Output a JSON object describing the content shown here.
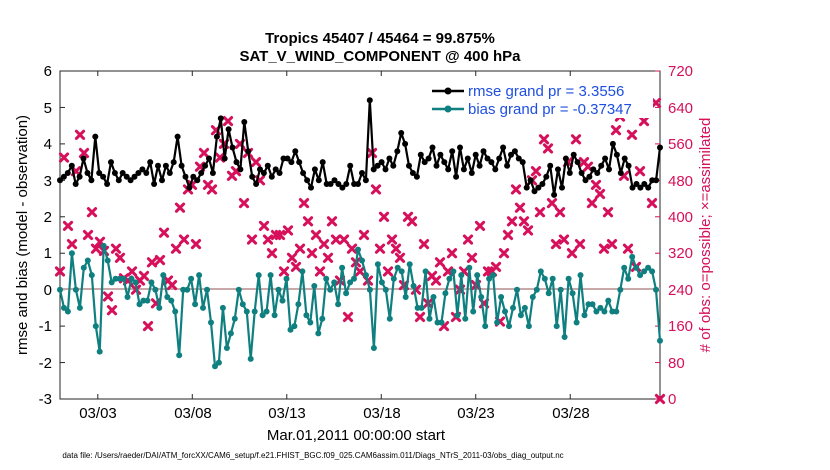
{
  "chart_data": {
    "type": "line",
    "title": "Tropics 45407 / 45464 = 99.875%",
    "subtitle": "SAT_V_WIND_COMPONENT @ 400 hPa",
    "xlabel": "Mar.01,2011 00:00:00 start",
    "ylabel": "rmse and bias (model - observation)",
    "ylabel_right": "# of obs: o=possible; ×=assimilated",
    "footnote": "data file: /Users/raeder/DAI/ATM_forcXX/CAM6_setup/f.e21.FHIST_BGC.f09_025.CAM6assim.011/Diags_NTrS_2011-03/obs_diag_output.nc",
    "xlim": [
      1,
      32.75
    ],
    "ylim": [
      -3,
      6
    ],
    "ylim_right": [
      0,
      720
    ],
    "x_ticks": [
      3,
      8,
      13,
      18,
      23,
      28
    ],
    "x_tick_labels": [
      "03/03",
      "03/08",
      "03/13",
      "03/18",
      "03/23",
      "03/28"
    ],
    "y_ticks": [
      "-3",
      "-2",
      "-1",
      "0",
      "1",
      "2",
      "3",
      "4",
      "5",
      "6"
    ],
    "y_ticks_right": [
      "0",
      "80",
      "160",
      "240",
      "320",
      "400",
      "480",
      "560",
      "640",
      "720"
    ],
    "legend": {
      "rmse_label": "rmse grand pr = 3.3556",
      "bias_label": "bias grand pr = -0.37347",
      "location": "top-right"
    },
    "colors": {
      "rmse": "#000000",
      "bias": "#0f7f7f",
      "obs": "#d6105a",
      "zero_line": "#c8a8a8",
      "legend_text": "#1f4fe0"
    },
    "series": [
      {
        "name": "rmse",
        "values": [
          3.0,
          3.1,
          3.2,
          3.4,
          2.9,
          3.1,
          3.6,
          3.2,
          3.0,
          4.2,
          3.2,
          3.1,
          2.9,
          3.5,
          3.2,
          3.0,
          3.2,
          3.1,
          3.0,
          3.1,
          3.2,
          3.3,
          3.2,
          3.5,
          2.9,
          3.4,
          3.0,
          3.4,
          3.2,
          3.5,
          4.2,
          3.4,
          3.1,
          2.8,
          3.1,
          3.0,
          3.2,
          3.4,
          3.6,
          3.2,
          4.2,
          4.7,
          3.6,
          4.4,
          3.9,
          3.5,
          3.3,
          4.6,
          3.8,
          3.1,
          2.9,
          3.3,
          3.2,
          3.4,
          3.1,
          3.3,
          3.2,
          3.6,
          3.6,
          3.5,
          3.8,
          3.5,
          3.2,
          3.0,
          2.8,
          3.3,
          3.0,
          3.5,
          2.9,
          2.9,
          3.0,
          2.9,
          2.8,
          2.9,
          3.4,
          2.9,
          2.9,
          3.2,
          3.0,
          5.2,
          3.3,
          3.4,
          3.5,
          3.3,
          3.6,
          3.4,
          3.8,
          4.3,
          4.0,
          3.4,
          3.2,
          3.1,
          3.7,
          3.5,
          3.6,
          3.9,
          3.4,
          3.7,
          3.5,
          3.3,
          3.8,
          3.1,
          3.9,
          3.3,
          3.6,
          3.2,
          3.7,
          3.4,
          3.8,
          3.6,
          3.5,
          3.3,
          3.6,
          3.9,
          3.4,
          3.7,
          3.8,
          3.6,
          3.5,
          2.8,
          3.0,
          2.7,
          2.8,
          2.9,
          3.1,
          3.4,
          2.6,
          3.3,
          2.8,
          3.6,
          3.2,
          3.7,
          3.5,
          3.2,
          3.0,
          3.1,
          3.3,
          3.2,
          3.4,
          3.6,
          3.3,
          4.0,
          3.7,
          3.2,
          3.6,
          3.4,
          2.8,
          2.9,
          2.8,
          2.9,
          2.8,
          3.0,
          3.0,
          3.9
        ],
        "note": "black line with dot markers, ~4 samples per day"
      },
      {
        "name": "bias",
        "values": [
          0.0,
          -0.5,
          -0.6,
          1.0,
          0.0,
          -0.5,
          0.6,
          0.8,
          0.4,
          -1.0,
          -1.7,
          1.2,
          0.8,
          0.2,
          0.3,
          0.3,
          0.3,
          -0.2,
          0.3,
          0.2,
          -0.4,
          -0.3,
          -0.3,
          0.2,
          0.0,
          -0.5,
          0.4,
          -0.2,
          -0.3,
          -0.6,
          -1.8,
          0.0,
          0.0,
          0.3,
          -0.4,
          0.4,
          -0.5,
          0.0,
          -0.9,
          -2.1,
          -2.0,
          -0.5,
          -1.6,
          -1.2,
          -0.8,
          0.0,
          -0.4,
          -0.6,
          -1.9,
          -0.6,
          0.4,
          -0.7,
          -0.6,
          0.4,
          -0.7,
          0.0,
          -0.3,
          0.3,
          -1.1,
          -1.0,
          -0.4,
          0.5,
          -0.7,
          -0.9,
          0.1,
          -1.2,
          -0.8,
          0.3,
          0.0,
          0.2,
          -0.4,
          0.6,
          -0.1,
          0.2,
          0.3,
          1.1,
          0.8,
          0.4,
          0.0,
          -1.6,
          0.7,
          0.2,
          0.0,
          -0.8,
          0.3,
          0.6,
          0.5,
          -0.2,
          0.7,
          0.1,
          -0.5,
          -0.5,
          0.5,
          -0.8,
          -0.2,
          -0.9,
          -0.9,
          -0.1,
          0.3,
          0.5,
          -0.7,
          0.4,
          -0.8,
          0.6,
          -0.6,
          0.4,
          -0.2,
          -1.0,
          0.3,
          0.4,
          -0.9,
          -0.2,
          -0.6,
          -1.0,
          -0.5,
          0.0,
          -0.7,
          -0.5,
          -1.0,
          -0.2,
          0.0,
          0.5,
          0.3,
          -0.1,
          0.3,
          -1.0,
          0.0,
          -1.3,
          0.3,
          -0.1,
          -0.9,
          0.4,
          -0.7,
          -0.4,
          -0.4,
          -0.6,
          -0.5,
          -0.6,
          -0.3,
          -0.6,
          -0.6,
          0.0,
          0.6,
          0.3,
          0.9,
          0.6,
          0.4,
          0.5,
          0.6,
          0.5,
          0.0,
          -1.4
        ],
        "note": "teal line with dot markers"
      },
      {
        "name": "obs_assimilated",
        "axis": "right",
        "values": [
          280,
          530,
          380,
          340,
          500,
          580,
          540,
          360,
          410,
          330,
          345,
          325,
          225,
          195,
          330,
          310,
          265,
          260,
          280,
          240,
          260,
          270,
          160,
          300,
          210,
          305,
          365,
          260,
          250,
          330,
          420,
          350,
          460,
          470,
          340,
          510,
          540,
          470,
          460,
          590,
          530,
          560,
          610,
          490,
          500,
          560,
          430,
          540,
          350,
          520,
          480,
          380,
          350,
          320,
          360,
          360,
          280,
          370,
          310,
          290,
          330,
          430,
          390,
          320,
          360,
          280,
          340,
          310,
          390,
          350,
          260,
          350,
          180,
          330,
          300,
          280,
          360,
          260,
          540,
          460,
          330,
          400,
          280,
          350,
          330,
          310,
          250,
          400,
          390,
          240,
          180,
          340,
          210,
          270,
          260,
          300,
          160,
          280,
          320,
          180,
          240,
          280,
          350,
          310,
          250,
          380,
          210,
          280,
          280,
          290,
          170,
          320,
          360,
          390,
          460,
          420,
          390,
          370,
          480,
          500,
          410,
          570,
          550,
          430,
          340,
          410,
          350,
          520,
          320,
          570,
          340,
          520,
          510,
          430,
          470,
          450,
          330,
          410,
          340,
          590,
          620,
          490,
          330,
          580,
          290,
          500,
          610,
          640,
          430,
          650,
          0
        ],
        "note": "crimson x markers"
      }
    ]
  }
}
